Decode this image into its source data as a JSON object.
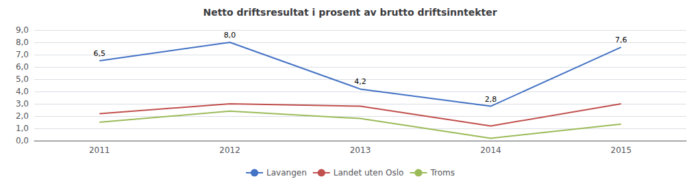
{
  "chart_data": {
    "type": "line",
    "title": "Netto driftsresultat i prosent av brutto driftsinntekter",
    "categories": [
      "2011",
      "2012",
      "2013",
      "2014",
      "2015"
    ],
    "series": [
      {
        "name": "Lavangen",
        "color": "#4472C4",
        "values": [
          6.5,
          8.0,
          4.2,
          2.8,
          7.6
        ],
        "data_labels": true,
        "value_labels": [
          "6,5",
          "8,0",
          "4,2",
          "2,8",
          "7,6"
        ]
      },
      {
        "name": "Landet uten Oslo",
        "color": "#C0504D",
        "values": [
          2.2,
          3.0,
          2.8,
          1.2,
          3.0
        ]
      },
      {
        "name": "Troms",
        "color": "#9BBB59",
        "values": [
          1.5,
          2.4,
          1.8,
          0.2,
          1.35
        ]
      }
    ],
    "ylim": [
      0.0,
      9.0
    ],
    "yticks": [
      {
        "value": 0.0,
        "label": "0,0"
      },
      {
        "value": 1.0,
        "label": "1,0"
      },
      {
        "value": 2.0,
        "label": "2,0"
      },
      {
        "value": 3.0,
        "label": "3,0"
      },
      {
        "value": 4.0,
        "label": "4,0"
      },
      {
        "value": 5.0,
        "label": "5,0"
      },
      {
        "value": 6.0,
        "label": "6,0"
      },
      {
        "value": 7.0,
        "label": "7,0"
      },
      {
        "value": 8.0,
        "label": "8,0"
      },
      {
        "value": 9.0,
        "label": "9,0"
      }
    ],
    "grid": true,
    "legend": "bottom"
  }
}
